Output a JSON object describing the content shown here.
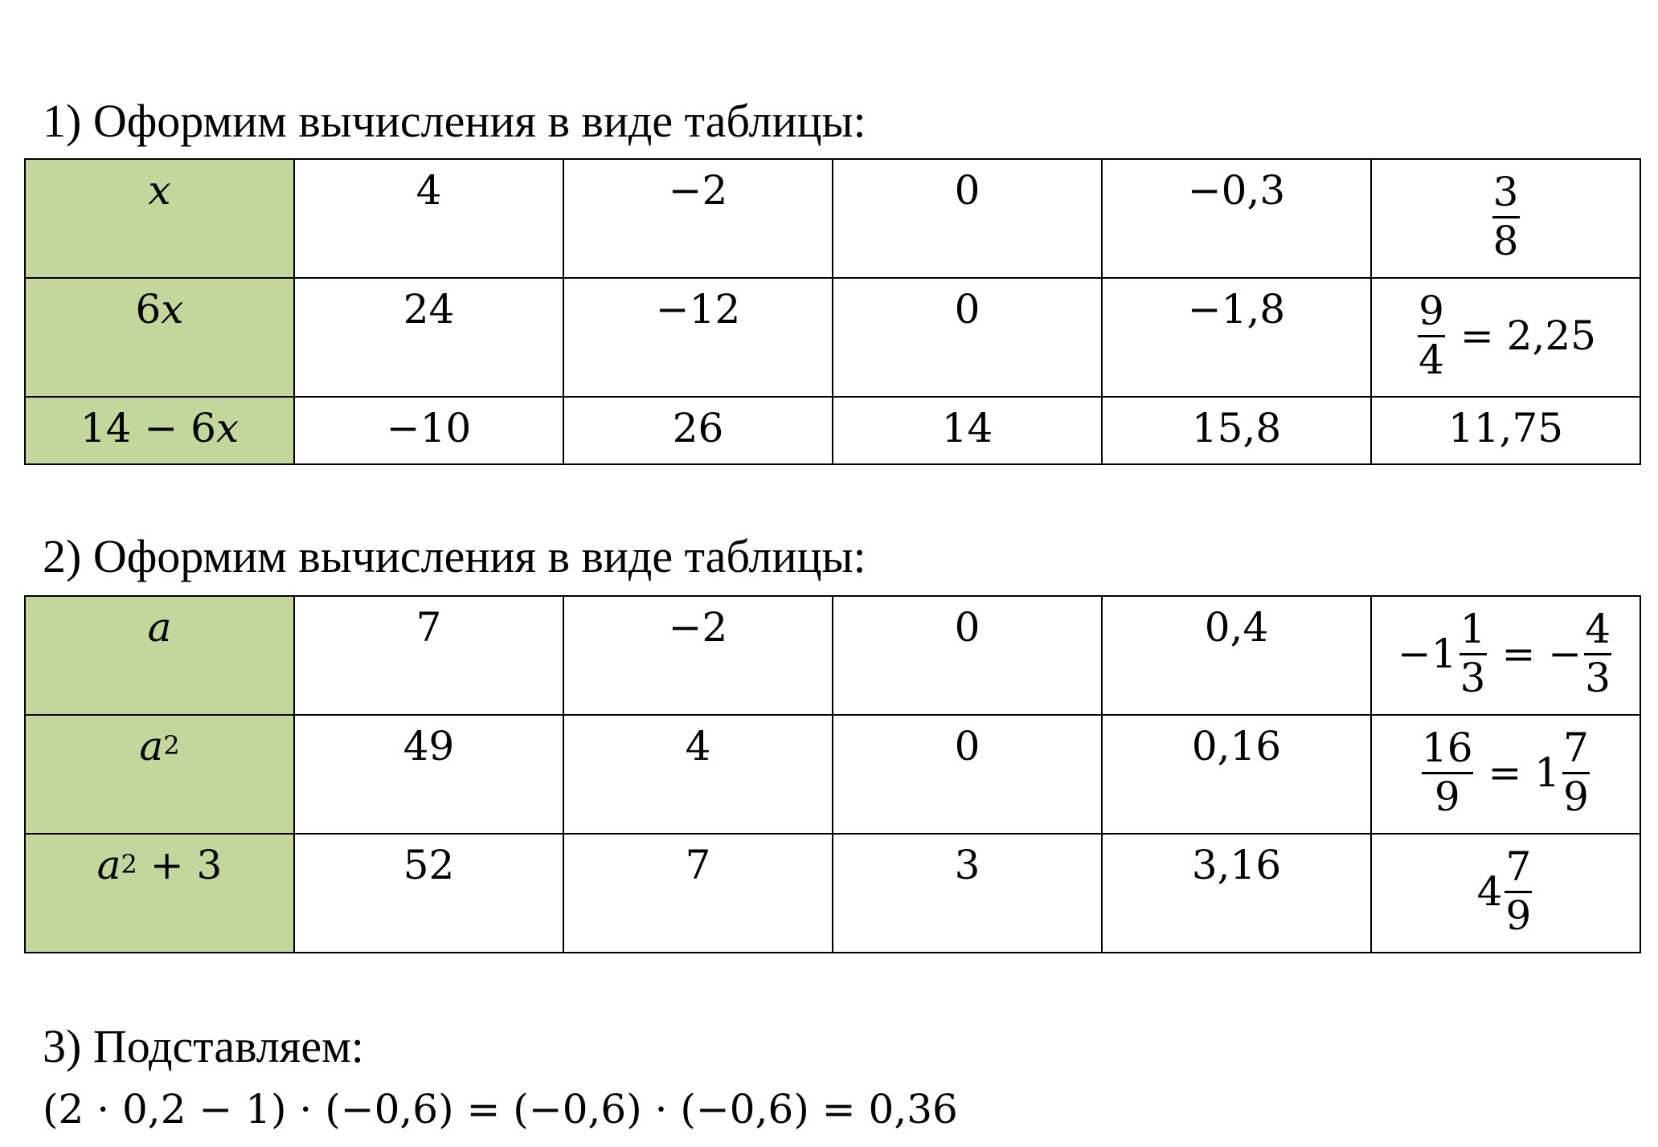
{
  "sections": [
    {
      "heading": "1) Оформим вычисления в виде таблицы:",
      "table": {
        "rows": [
          [
            [
              {
                "var": "x"
              }
            ],
            [
              "4"
            ],
            [
              "−2"
            ],
            [
              "0"
            ],
            [
              "−0,3"
            ],
            [
              {
                "num": "3",
                "den": "8"
              }
            ]
          ],
          [
            [
              "6",
              {
                "var": "x"
              }
            ],
            [
              "24"
            ],
            [
              "−12"
            ],
            [
              "0"
            ],
            [
              "−1,8"
            ],
            [
              {
                "num": "9",
                "den": "4"
              },
              " = 2,25"
            ]
          ],
          [
            [
              "14 − 6",
              {
                "var": "x"
              }
            ],
            [
              "−10"
            ],
            [
              "26"
            ],
            [
              "14"
            ],
            [
              "15,8"
            ],
            [
              "11,75"
            ]
          ]
        ]
      }
    },
    {
      "heading": "2) Оформим вычисления в виде таблицы:",
      "table": {
        "rows": [
          [
            [
              {
                "var": "a"
              }
            ],
            [
              "7"
            ],
            [
              "−2"
            ],
            [
              "0"
            ],
            [
              "0,4"
            ],
            [
              "−1",
              {
                "num": "1",
                "den": "3"
              },
              " = −",
              {
                "num": "4",
                "den": "3"
              }
            ]
          ],
          [
            [
              {
                "var": "a"
              },
              {
                "sup": "2"
              }
            ],
            [
              "49"
            ],
            [
              "4"
            ],
            [
              "0"
            ],
            [
              "0,16"
            ],
            [
              {
                "num": "16",
                "den": "9"
              },
              " = 1",
              {
                "num": "7",
                "den": "9"
              }
            ]
          ],
          [
            [
              {
                "var": "a"
              },
              {
                "sup": "2"
              },
              " + 3"
            ],
            [
              "52"
            ],
            [
              "7"
            ],
            [
              "3"
            ],
            [
              "3,16"
            ],
            [
              "4",
              {
                "num": "7",
                "den": "9"
              }
            ]
          ]
        ]
      }
    },
    {
      "heading": "3) Подставляем:",
      "equation": "(2 · 0,2 − 1) · (−0,6) = (−0,6) · (−0,6) = 0,36"
    }
  ]
}
